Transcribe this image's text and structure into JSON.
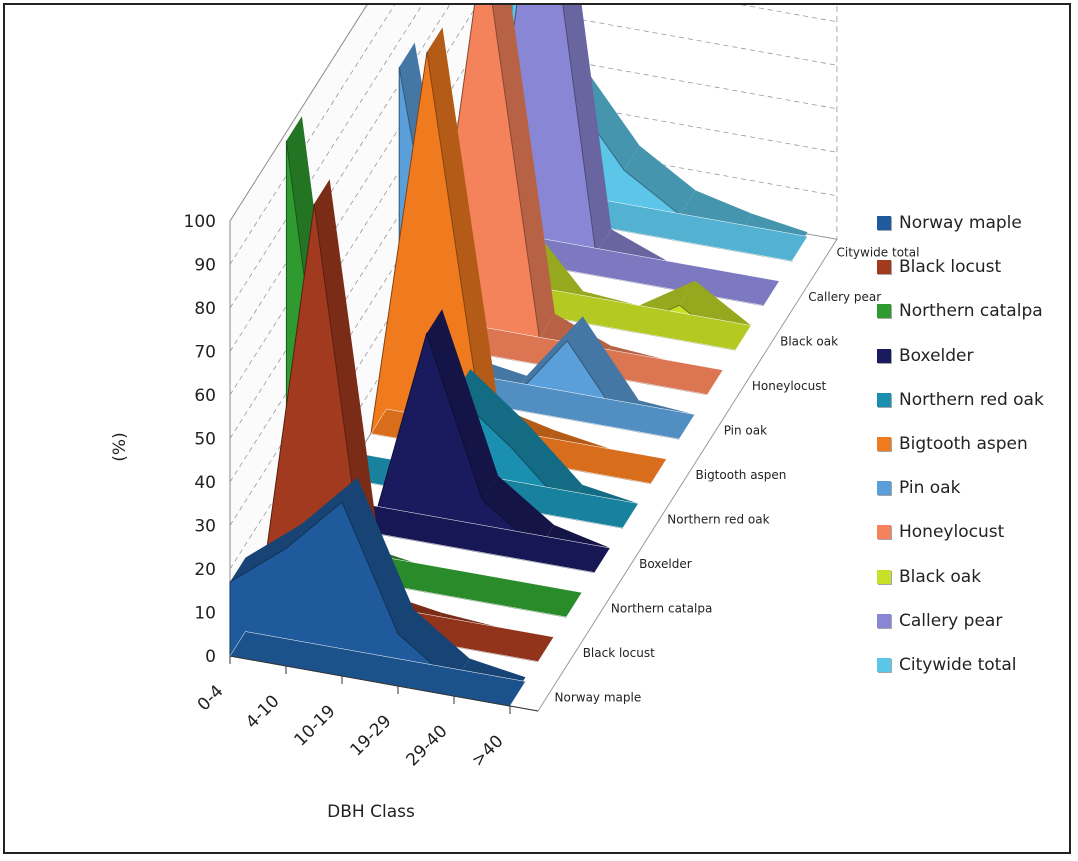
{
  "chart_data": {
    "type": "area",
    "subtype": "3d-area",
    "xlabel": "DBH Class",
    "ylabel": "(%)",
    "categories": [
      "0-4",
      "4-10",
      "10-19",
      "19-29",
      "29-40",
      ">40"
    ],
    "y_ticks": [
      "0",
      "10",
      "20",
      "30",
      "40",
      "50",
      "60",
      "70",
      "80",
      "90",
      "100"
    ],
    "ylim": [
      0,
      100
    ],
    "grid": true,
    "legend_position": "right",
    "series": [
      {
        "name": "Norway maple",
        "color": "#1f5b9c",
        "values": [
          17,
          27,
          40,
          12,
          3,
          1
        ]
      },
      {
        "name": "Black locust",
        "color": "#a23a1f",
        "values": [
          0,
          96,
          3,
          1,
          0,
          0
        ]
      },
      {
        "name": "Northern catalpa",
        "color": "#2f9a2f",
        "values": [
          98,
          2,
          0,
          0,
          0,
          0
        ]
      },
      {
        "name": "Boxelder",
        "color": "#1a1a5e",
        "values": [
          0,
          0,
          48,
          12,
          3,
          0
        ]
      },
      {
        "name": "Northern red oak",
        "color": "#1a8fb0",
        "values": [
          0,
          0,
          24,
          14,
          2,
          0
        ]
      },
      {
        "name": "Bigtooth aspen",
        "color": "#f07a1e",
        "values": [
          0,
          90,
          5,
          2,
          0,
          0
        ]
      },
      {
        "name": "Pin oak",
        "color": "#5a9fd9",
        "values": [
          74,
          4,
          2,
          18,
          1,
          0
        ]
      },
      {
        "name": "Honeylocust",
        "color": "#f4825a",
        "values": [
          0,
          95,
          6,
          1,
          0,
          0
        ]
      },
      {
        "name": "Black oak",
        "color": "#c8e027",
        "values": [
          0,
          15,
          1,
          0,
          8,
          0
        ]
      },
      {
        "name": "Callery pear",
        "color": "#8a86d6",
        "values": [
          0,
          100,
          5,
          0,
          0,
          0
        ]
      },
      {
        "name": "Citywide total",
        "color": "#5cc6e8",
        "values": [
          70,
          30,
          14,
          6,
          3,
          1
        ]
      }
    ]
  },
  "legend": {
    "items": [
      {
        "label": "Norway maple",
        "color": "#1f5b9c"
      },
      {
        "label": "Black locust",
        "color": "#a23a1f"
      },
      {
        "label": "Northern catalpa",
        "color": "#2f9a2f"
      },
      {
        "label": "Boxelder",
        "color": "#1a1a5e"
      },
      {
        "label": "Northern red oak",
        "color": "#1a8fb0"
      },
      {
        "label": "Bigtooth aspen",
        "color": "#f07a1e"
      },
      {
        "label": "Pin oak",
        "color": "#5a9fd9"
      },
      {
        "label": "Honeylocust",
        "color": "#f4825a"
      },
      {
        "label": "Black oak",
        "color": "#c8e027"
      },
      {
        "label": "Callery pear",
        "color": "#8a86d6"
      },
      {
        "label": "Citywide total",
        "color": "#5cc6e8"
      }
    ]
  }
}
